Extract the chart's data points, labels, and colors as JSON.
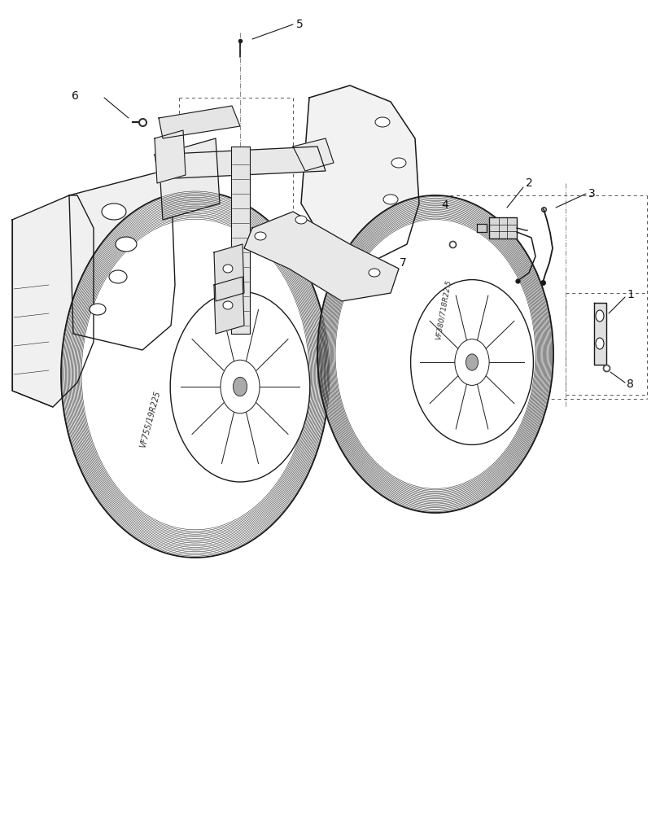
{
  "bg_color": "#ffffff",
  "lc": "#1a1a1a",
  "lc_thin": "#2a2a2a",
  "dc": "#555555",
  "figsize": [
    8.12,
    10.0
  ],
  "dpi": 100,
  "wheel_lw": 0.7,
  "frame_lw": 1.0,
  "note_fontsize": 10,
  "tire_text1": "VF755/19R225",
  "tire_text2": "VF380/718R22.5"
}
